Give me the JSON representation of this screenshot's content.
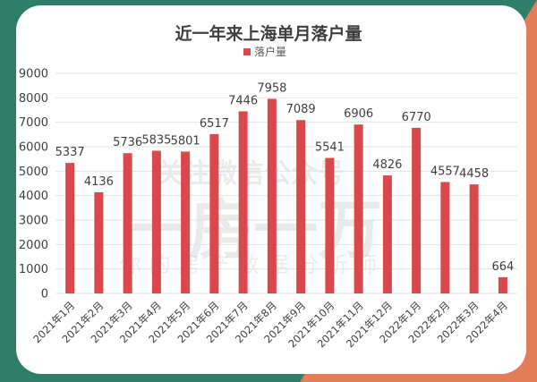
{
  "colors": {
    "bar": "#D9484C",
    "frame_green": "#2E7E6A",
    "frame_orange": "#E47C57",
    "card": "#FFFFFF",
    "grid": "#E3E3E3"
  },
  "watermark": {
    "line1": "关注微信公众号",
    "line2": "一房一万",
    "line3": "你的房产数据分析师"
  },
  "chart_data": {
    "type": "bar",
    "title": "近一年来上海单月落户量",
    "legend_position": "top",
    "grid": true,
    "ylim": [
      0,
      9000
    ],
    "yticks": [
      "0",
      "1000",
      "2000",
      "3000",
      "4000",
      "5000",
      "6000",
      "7000",
      "8000",
      "9000"
    ],
    "categories": [
      "2021年1月",
      "2021年2月",
      "2021年3月",
      "2021年4月",
      "2021年5月",
      "2021年6月",
      "2021年7月",
      "2021年8月",
      "2021年9月",
      "2021年10月",
      "2021年11月",
      "2021年12月",
      "2022年1月",
      "2022年2月",
      "2022年3月",
      "2022年4月"
    ],
    "series": [
      {
        "name": "落户量",
        "values": [
          5337,
          4136,
          5736,
          5835,
          5801,
          6517,
          7446,
          7958,
          7089,
          5541,
          6906,
          4826,
          6770,
          4557,
          4458,
          664
        ]
      }
    ]
  }
}
